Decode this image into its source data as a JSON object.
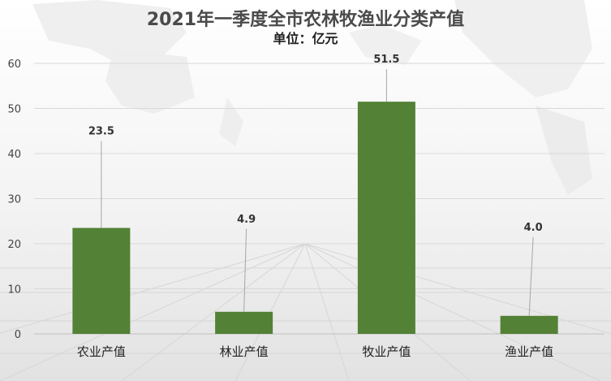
{
  "chart_data": {
    "type": "bar",
    "title": "2021年一季度全市农林牧渔业分类产值",
    "subtitle": "单位：亿元",
    "categories": [
      "农业产值",
      "林业产值",
      "牧业产值",
      "渔业产值"
    ],
    "values": [
      23.5,
      4.9,
      51.5,
      4.0
    ],
    "data_labels": [
      "23.5",
      "4.9",
      "51.5",
      "4.0"
    ],
    "ylim": [
      0,
      60
    ],
    "yticks": [
      0,
      10,
      20,
      30,
      40,
      50,
      60
    ],
    "grid": true,
    "legend": "none",
    "bar_color": "#538135"
  }
}
